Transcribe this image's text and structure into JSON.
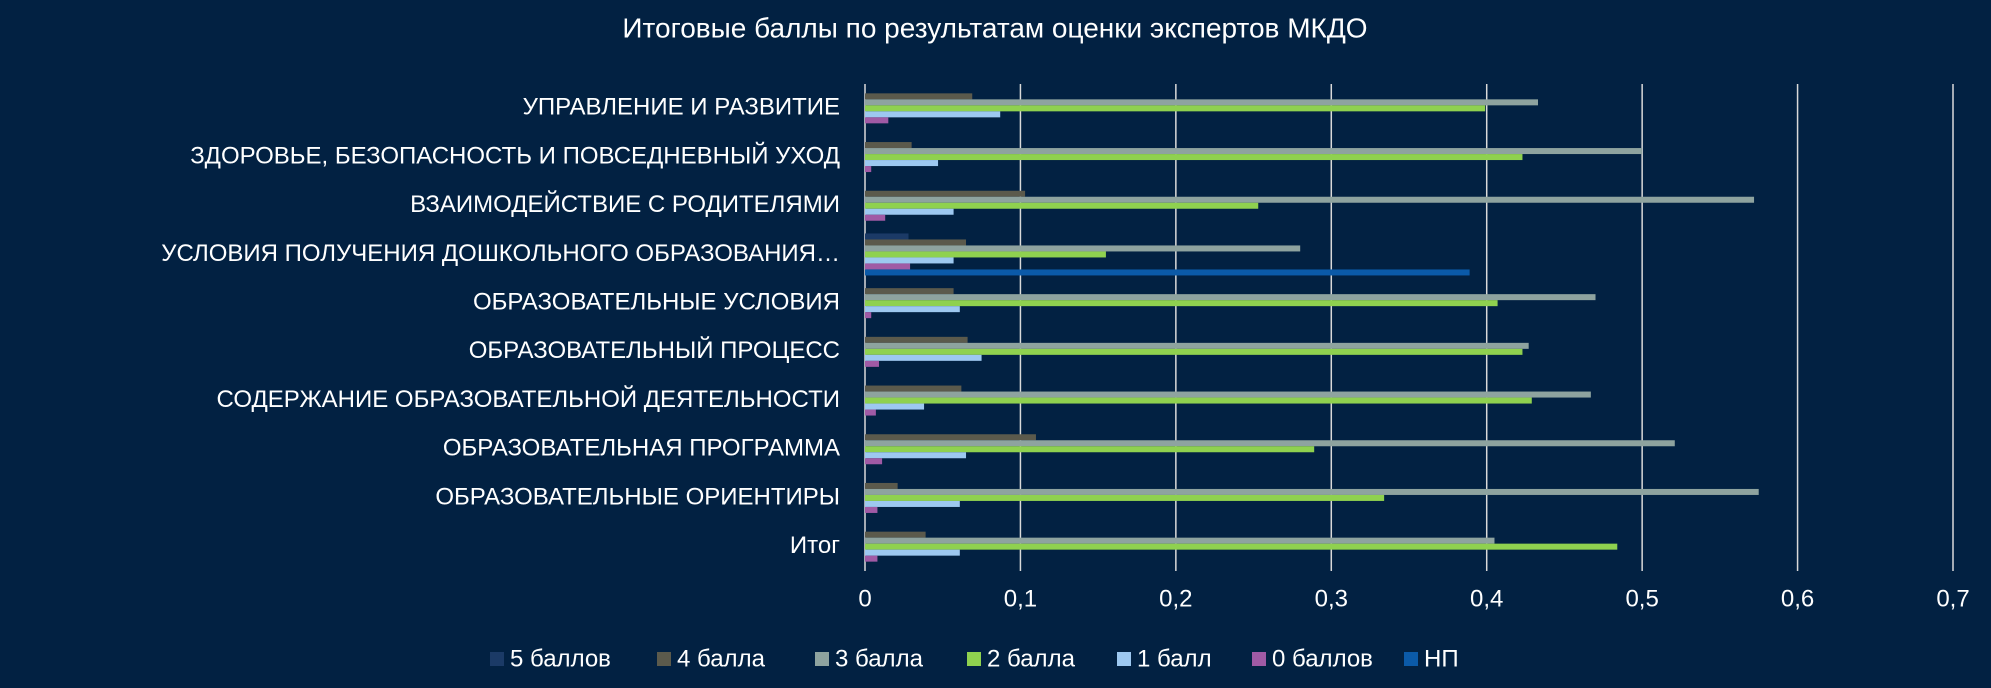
{
  "chart_data": {
    "type": "hbar",
    "title": "Итоговые баллы по результатам оценки экспертов МКДО",
    "categories": [
      "УПРАВЛЕНИЕ И РАЗВИТИЕ",
      "ЗДОРОВЬЕ, БЕЗОПАСНОСТЬ И ПОВСЕДНЕВНЫЙ УХОД",
      "ВЗАИМОДЕЙСТВИЕ С РОДИТЕЛЯМИ",
      "УСЛОВИЯ ПОЛУЧЕНИЯ ДОШКОЛЬНОГО ОБРАЗОВАНИЯ…",
      "ОБРАЗОВАТЕЛЬНЫЕ УСЛОВИЯ",
      "ОБРАЗОВАТЕЛЬНЫЙ ПРОЦЕСС",
      "СОДЕРЖАНИЕ ОБРАЗОВАТЕЛЬНОЙ ДЕЯТЕЛЬНОСТИ",
      "ОБРАЗОВАТЕЛЬНАЯ ПРОГРАММА",
      "ОБРАЗОВАТЕЛЬНЫЕ ОРИЕНТИРЫ",
      "Итог"
    ],
    "series": [
      {
        "name": "5 баллов",
        "color": "#1b3a66",
        "values": [
          0,
          0,
          0,
          0.028,
          0,
          0,
          0,
          0,
          0,
          0
        ]
      },
      {
        "name": "4 балла",
        "color": "#5b5a4c",
        "values": [
          0.069,
          0.03,
          0.103,
          0.065,
          0.057,
          0.066,
          0.062,
          0.11,
          0.021,
          0.039
        ]
      },
      {
        "name": "3 балла",
        "color": "#8ea39f",
        "values": [
          0.433,
          0.5,
          0.572,
          0.28,
          0.47,
          0.427,
          0.467,
          0.521,
          0.575,
          0.405
        ]
      },
      {
        "name": "2 балла",
        "color": "#8fd14f",
        "values": [
          0.399,
          0.423,
          0.253,
          0.155,
          0.407,
          0.423,
          0.429,
          0.289,
          0.334,
          0.484
        ]
      },
      {
        "name": "1 балл",
        "color": "#9dc8f0",
        "values": [
          0.087,
          0.047,
          0.057,
          0.057,
          0.061,
          0.075,
          0.038,
          0.065,
          0.061,
          0.061
        ]
      },
      {
        "name": "0 баллов",
        "color": "#a05aa5",
        "values": [
          0.015,
          0.004,
          0.013,
          0.029,
          0.004,
          0.009,
          0.007,
          0.011,
          0.008,
          0.008
        ]
      },
      {
        "name": "НП",
        "color": "#0b5aa8",
        "values": [
          0,
          0,
          0,
          0.389,
          0,
          0,
          0,
          0,
          0,
          0
        ]
      }
    ],
    "xlim": [
      0,
      0.7
    ],
    "xticks": [
      0,
      {
        "value": 0.1,
        "label": "0,1"
      },
      {
        "value": 0.2,
        "label": "0,2"
      },
      {
        "value": 0.3,
        "label": "0,3"
      },
      {
        "value": 0.4,
        "label": "0,4"
      },
      {
        "value": 0.5,
        "label": "0,5"
      },
      {
        "value": 0.6,
        "label": "0,6"
      },
      {
        "value": 0.7,
        "label": "0,7"
      }
    ],
    "grid": true,
    "legend": "bottom"
  }
}
